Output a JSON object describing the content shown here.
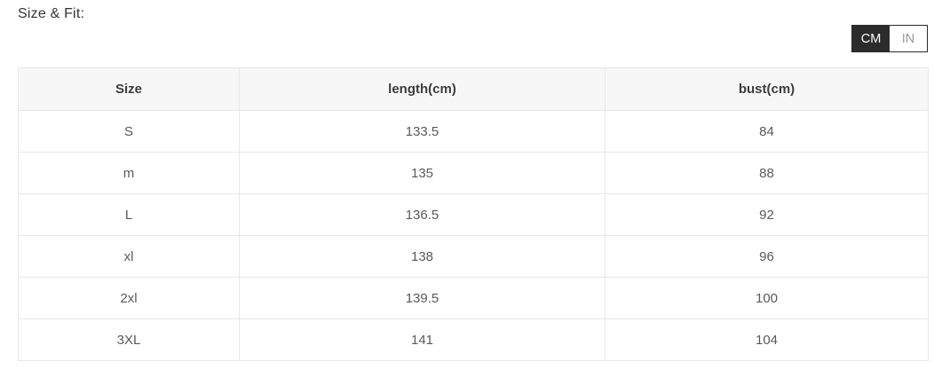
{
  "section": {
    "title": "Size & Fit:"
  },
  "unit_toggle": {
    "options": [
      {
        "label": "CM",
        "active": true
      },
      {
        "label": "IN",
        "active": false
      }
    ]
  },
  "chart_data": {
    "type": "table",
    "columns": [
      "Size",
      "length(cm)",
      "bust(cm)"
    ],
    "rows": [
      [
        "S",
        "133.5",
        "84"
      ],
      [
        "m",
        "135",
        "88"
      ],
      [
        "L",
        "136.5",
        "92"
      ],
      [
        "xl",
        "138",
        "96"
      ],
      [
        "2xl",
        "139.5",
        "100"
      ],
      [
        "3XL",
        "141",
        "104"
      ]
    ]
  },
  "colors": {
    "toggle_active_bg": "#2b2b2b",
    "toggle_active_text": "#ffffff",
    "toggle_inactive_text": "#999999",
    "header_bg": "#f7f7f7",
    "border": "#e8e8e8",
    "header_text": "#3c3c3c",
    "body_text": "#595959"
  }
}
